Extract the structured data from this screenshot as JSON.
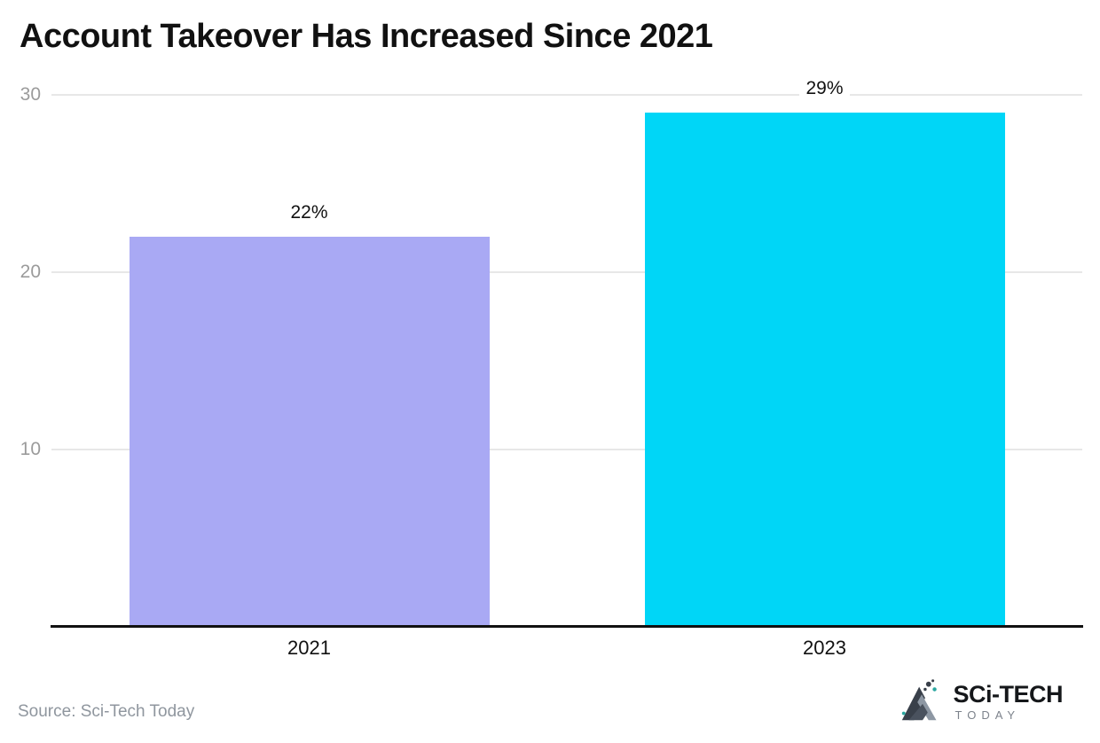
{
  "title": "Account Takeover Has Increased Since 2021",
  "source": "Source: Sci-Tech Today",
  "logo": {
    "title": "SCi-TECH",
    "subtitle": "TODAY"
  },
  "chart_data": {
    "type": "bar",
    "title": "Account Takeover Has Increased Since 2021",
    "categories": [
      "2021",
      "2023"
    ],
    "values": [
      22,
      29
    ],
    "value_labels": [
      "22%",
      "29%"
    ],
    "bar_colors": [
      "#A9A9F4",
      "#00D6F7"
    ],
    "yticks": [
      30,
      20,
      10
    ],
    "ylim": [
      0,
      30
    ],
    "grid": true,
    "legend": "none",
    "colors": {
      "grid": "#e7e7e7",
      "axis": "#111111",
      "ytick_label": "#9b9b9b",
      "value_label": "#111111",
      "category_label": "#111111",
      "title": "#111111",
      "source": "#8f969e"
    }
  }
}
